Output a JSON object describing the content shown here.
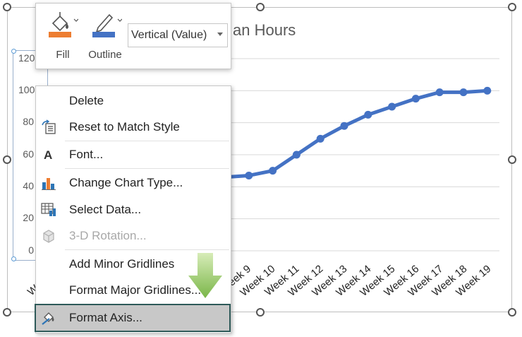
{
  "chart": {
    "title_visible": "an Hours",
    "y_ticks": [
      "120",
      "100",
      "80",
      "60",
      "40",
      "20",
      "0"
    ],
    "x_ticks_visible": [
      "W",
      "Week 9",
      "Week 10",
      "Week 11",
      "Week 12",
      "Week 13",
      "Week 14",
      "Week 15",
      "Week 16",
      "Week 17",
      "Week 18",
      "Week 19"
    ]
  },
  "chart_data": {
    "type": "line",
    "title": "an Hours",
    "ylim": [
      0,
      120
    ],
    "categories": [
      "Week 8",
      "Week 9",
      "Week 10",
      "Week 11",
      "Week 12",
      "Week 13",
      "Week 14",
      "Week 15",
      "Week 16",
      "Week 17",
      "Week 18",
      "Week 19"
    ],
    "series": [
      {
        "values": [
          46,
          47,
          50,
          60,
          70,
          78,
          85,
          90,
          95,
          99,
          99,
          100
        ]
      }
    ],
    "colors": {
      "line": "#4472c4"
    },
    "grid": true
  },
  "toolbar": {
    "fill_label": "Fill",
    "outline_label": "Outline",
    "series_selector": "Vertical (Value)",
    "fill_color": "#ed7d31",
    "outline_color": "#4472c4"
  },
  "menu": {
    "delete": "Delete",
    "reset_style": "Reset to Match Style",
    "font": "Font...",
    "change_chart_type": "Change Chart Type...",
    "select_data": "Select Data...",
    "rotation_3d": "3-D Rotation...",
    "add_minor_gridlines": "Add Minor Gridlines",
    "format_major_gridlines": "Format Major Gridlines...",
    "format_axis": "Format Axis..."
  }
}
